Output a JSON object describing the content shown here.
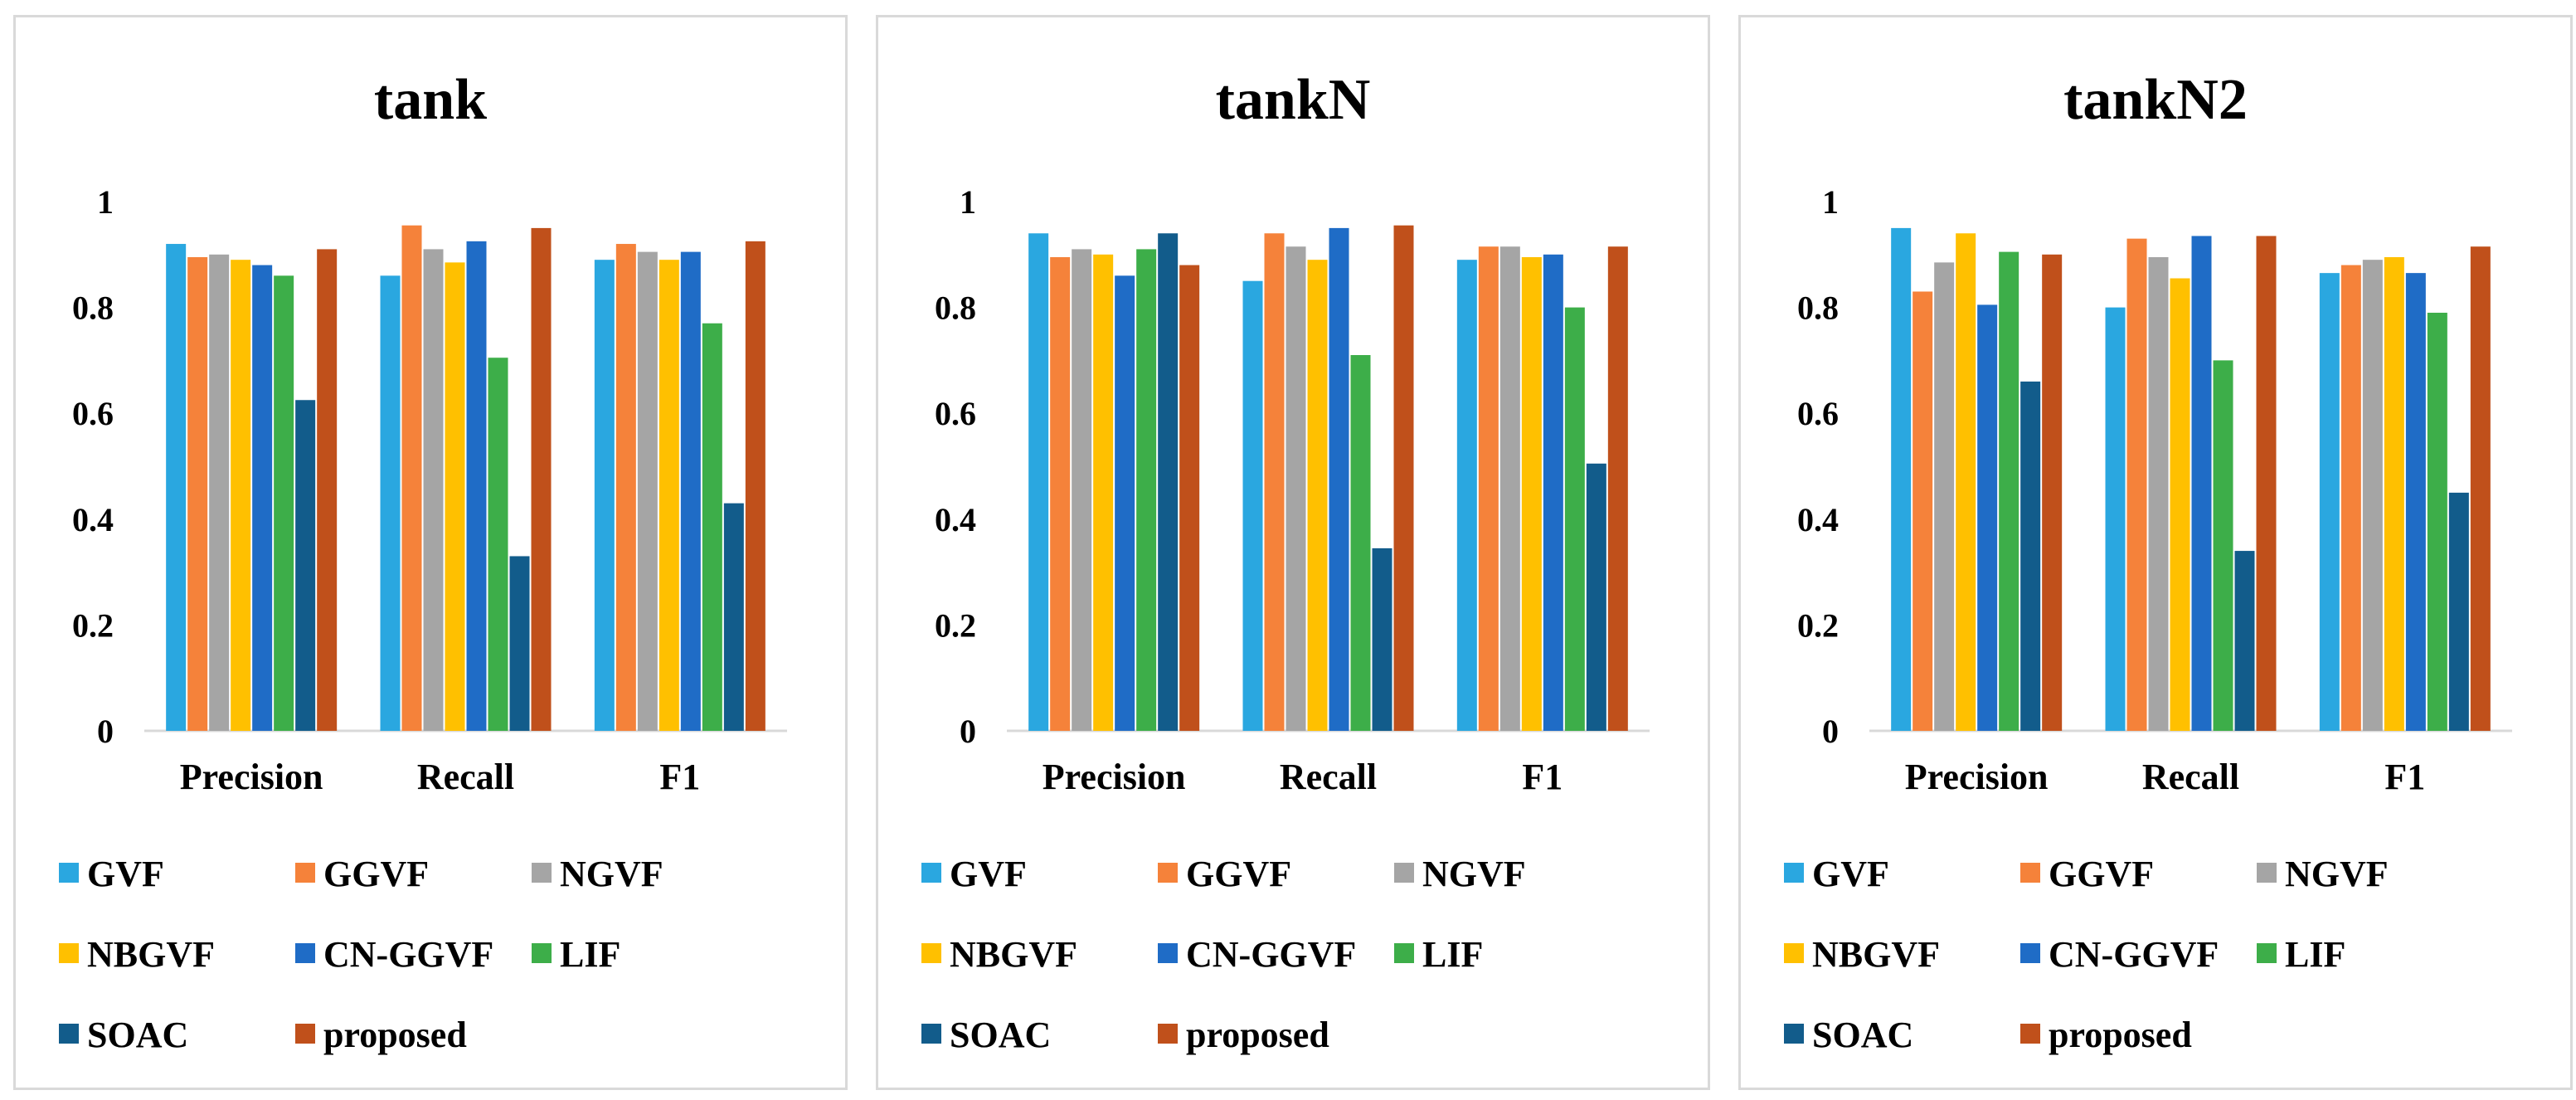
{
  "chart_data": [
    {
      "type": "bar",
      "title": "tank",
      "categories": [
        "Precision",
        "Recall",
        "F1"
      ],
      "ylim": [
        0,
        1
      ],
      "yticks": [
        "0",
        "0.2",
        "0.4",
        "0.6",
        "0.8",
        "1"
      ],
      "xlabel": "",
      "ylabel": "",
      "legend_position": "bottom",
      "series": [
        {
          "name": "GVF",
          "color": "#2AA7E0",
          "values": [
            0.92,
            0.86,
            0.89
          ]
        },
        {
          "name": "GGVF",
          "color": "#F5823A",
          "values": [
            0.895,
            0.955,
            0.92
          ]
        },
        {
          "name": "NGVF",
          "color": "#A5A5A5",
          "values": [
            0.9,
            0.91,
            0.905
          ]
        },
        {
          "name": "NBGVF",
          "color": "#FFC000",
          "values": [
            0.89,
            0.885,
            0.89
          ]
        },
        {
          "name": "CN-GGVF",
          "color": "#1F6CC6",
          "values": [
            0.88,
            0.925,
            0.905
          ]
        },
        {
          "name": "LIF",
          "color": "#3DAE49",
          "values": [
            0.86,
            0.705,
            0.77
          ]
        },
        {
          "name": "SOAC",
          "color": "#125C8B",
          "values": [
            0.625,
            0.33,
            0.43
          ]
        },
        {
          "name": "proposed",
          "color": "#C0501B",
          "values": [
            0.91,
            0.95,
            0.925
          ]
        }
      ]
    },
    {
      "type": "bar",
      "title": "tankN",
      "categories": [
        "Precision",
        "Recall",
        "F1"
      ],
      "ylim": [
        0,
        1
      ],
      "yticks": [
        "0",
        "0.2",
        "0.4",
        "0.6",
        "0.8",
        "1"
      ],
      "xlabel": "",
      "ylabel": "",
      "legend_position": "bottom",
      "series": [
        {
          "name": "GVF",
          "color": "#2AA7E0",
          "values": [
            0.94,
            0.85,
            0.89
          ]
        },
        {
          "name": "GGVF",
          "color": "#F5823A",
          "values": [
            0.895,
            0.94,
            0.915
          ]
        },
        {
          "name": "NGVF",
          "color": "#A5A5A5",
          "values": [
            0.91,
            0.915,
            0.915
          ]
        },
        {
          "name": "NBGVF",
          "color": "#FFC000",
          "values": [
            0.9,
            0.89,
            0.895
          ]
        },
        {
          "name": "CN-GGVF",
          "color": "#1F6CC6",
          "values": [
            0.86,
            0.95,
            0.9
          ]
        },
        {
          "name": "LIF",
          "color": "#3DAE49",
          "values": [
            0.91,
            0.71,
            0.8
          ]
        },
        {
          "name": "SOAC",
          "color": "#125C8B",
          "values": [
            0.94,
            0.345,
            0.505
          ]
        },
        {
          "name": "proposed",
          "color": "#C0501B",
          "values": [
            0.88,
            0.955,
            0.915
          ]
        }
      ]
    },
    {
      "type": "bar",
      "title": "tankN2",
      "categories": [
        "Precision",
        "Recall",
        "F1"
      ],
      "ylim": [
        0,
        1
      ],
      "yticks": [
        "0",
        "0.2",
        "0.4",
        "0.6",
        "0.8",
        "1"
      ],
      "xlabel": "",
      "ylabel": "",
      "legend_position": "bottom",
      "series": [
        {
          "name": "GVF",
          "color": "#2AA7E0",
          "values": [
            0.95,
            0.8,
            0.865
          ]
        },
        {
          "name": "GGVF",
          "color": "#F5823A",
          "values": [
            0.83,
            0.93,
            0.88
          ]
        },
        {
          "name": "NGVF",
          "color": "#A5A5A5",
          "values": [
            0.885,
            0.895,
            0.89
          ]
        },
        {
          "name": "NBGVF",
          "color": "#FFC000",
          "values": [
            0.94,
            0.855,
            0.895
          ]
        },
        {
          "name": "CN-GGVF",
          "color": "#1F6CC6",
          "values": [
            0.805,
            0.935,
            0.865
          ]
        },
        {
          "name": "LIF",
          "color": "#3DAE49",
          "values": [
            0.905,
            0.7,
            0.79
          ]
        },
        {
          "name": "SOAC",
          "color": "#125C8B",
          "values": [
            0.66,
            0.34,
            0.45
          ]
        },
        {
          "name": "proposed",
          "color": "#C0501B",
          "values": [
            0.9,
            0.935,
            0.915
          ]
        }
      ]
    }
  ]
}
